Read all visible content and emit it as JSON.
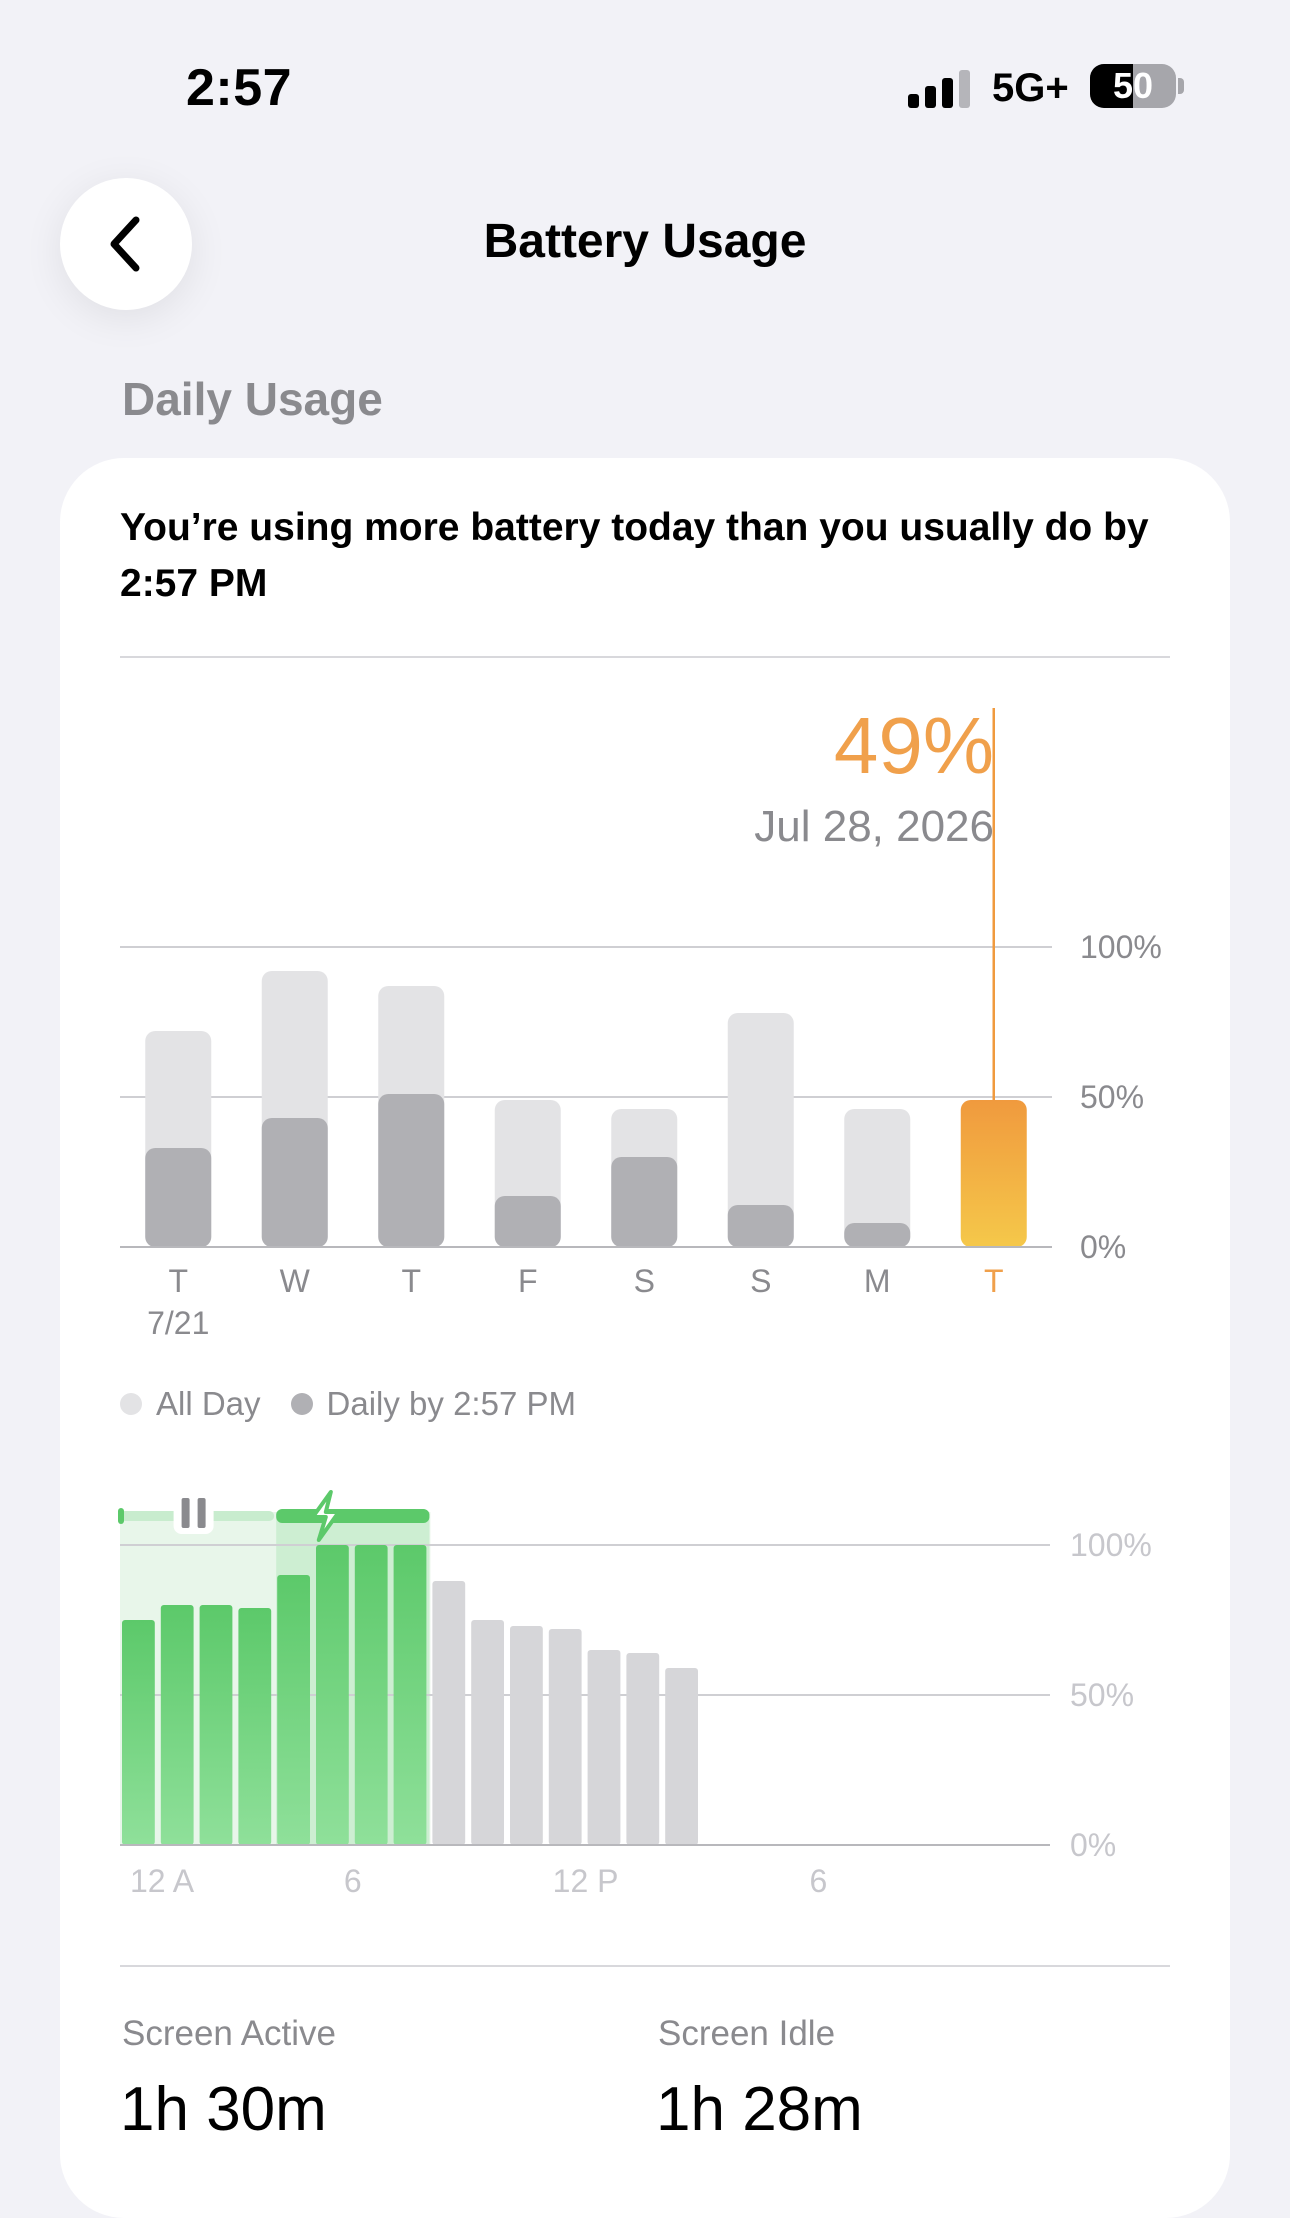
{
  "status_bar": {
    "time": "2:57",
    "network": "5G+",
    "battery_percent": "50",
    "battery_level": 0.5,
    "signal_bars": 3
  },
  "nav": {
    "title": "Battery Usage",
    "back_icon": "chevron-left-icon"
  },
  "section": {
    "title": "Daily Usage"
  },
  "insight": {
    "text": "You’re using more battery today than you usually do by 2:57 PM"
  },
  "selection": {
    "percent": "49%",
    "date": "Jul 28, 2026"
  },
  "legend": {
    "all_day": "All Day",
    "daily_by": "Daily by 2:57 PM"
  },
  "colors": {
    "all_day": "#e3e3e5",
    "daily_by": "#b0b0b4",
    "selected_top": "#f09a3e",
    "selected_bottom": "#f5c84a",
    "charge_green": "#5cc96a",
    "inactive_gray": "#d6d6d9",
    "accent_orange": "#f0a04b"
  },
  "chart_data": [
    {
      "type": "bar",
      "categories": [
        "T",
        "W",
        "T",
        "F",
        "S",
        "S",
        "M",
        "T"
      ],
      "sublabels": [
        "7/21",
        "",
        "",
        "",
        "",
        "",
        "",
        ""
      ],
      "series": [
        {
          "name": "All Day",
          "values": [
            72,
            92,
            87,
            49,
            46,
            78,
            46,
            49
          ]
        },
        {
          "name": "Daily by 2:57 PM",
          "values": [
            33,
            43,
            51,
            17,
            30,
            14,
            8,
            49
          ]
        }
      ],
      "selected_index": 7,
      "ytick_labels": [
        "100%",
        "50%",
        "0%"
      ],
      "ylim": [
        0,
        100
      ]
    },
    {
      "type": "bar",
      "x_tick_labels": [
        "12 A",
        "6",
        "12 P",
        "6"
      ],
      "values": [
        75,
        80,
        80,
        79,
        90,
        100,
        100,
        100,
        88,
        75,
        73,
        72,
        65,
        64,
        59
      ],
      "charging_hours": [
        4,
        5,
        6,
        7
      ],
      "highlighted_hours": [
        0,
        1,
        2,
        3,
        4,
        5,
        6,
        7
      ],
      "ytick_labels": [
        "100%",
        "50%",
        "0%"
      ],
      "ylim": [
        0,
        100
      ]
    }
  ],
  "stats": [
    {
      "label": "Screen Active",
      "value": "1h 30m"
    },
    {
      "label": "Screen Idle",
      "value": "1h 28m"
    }
  ]
}
